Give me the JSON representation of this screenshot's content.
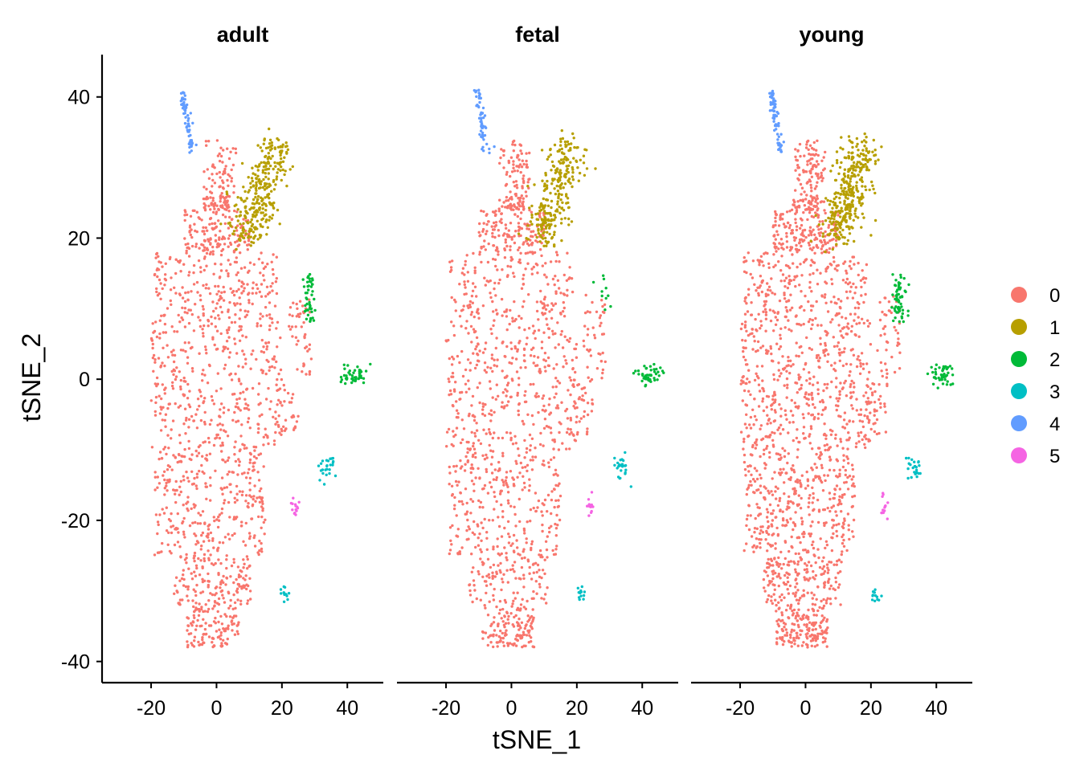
{
  "chart_data": {
    "type": "scatter",
    "xlabel": "tSNE_1",
    "ylabel": "tSNE_2",
    "xlim": [
      -35,
      51
    ],
    "ylim": [
      -43,
      46
    ],
    "x_ticks": [
      -20,
      0,
      20,
      40
    ],
    "y_ticks": [
      40,
      20,
      0,
      -20,
      -40
    ],
    "panels": [
      "adult",
      "fetal",
      "young"
    ],
    "legend": {
      "position": "right",
      "entries": [
        {
          "label": "0",
          "color": "#F8766D"
        },
        {
          "label": "1",
          "color": "#B79F00"
        },
        {
          "label": "2",
          "color": "#00BA38"
        },
        {
          "label": "3",
          "color": "#00BFC4"
        },
        {
          "label": "4",
          "color": "#619CFF"
        },
        {
          "label": "5",
          "color": "#F564E3"
        }
      ]
    },
    "clusters": [
      {
        "cluster": "0",
        "region": "main body",
        "x_range": [
          -28,
          30
        ],
        "y_range": [
          -38,
          34
        ]
      },
      {
        "cluster": "1",
        "center": [
          17,
          27
        ],
        "x_range": [
          5,
          22
        ],
        "y_range": [
          20,
          33
        ]
      },
      {
        "cluster": "2",
        "groups": [
          {
            "center": [
              28,
              9
            ]
          },
          {
            "center": [
              42,
              0
            ]
          }
        ]
      },
      {
        "cluster": "3",
        "groups": [
          {
            "center": [
              34,
              -12.5
            ]
          },
          {
            "center": [
              21,
              -30
            ]
          }
        ]
      },
      {
        "cluster": "4",
        "center": [
          -10,
          37
        ],
        "x_range": [
          -12,
          -7
        ],
        "y_range": [
          31,
          42
        ]
      },
      {
        "cluster": "5",
        "center": [
          24,
          -18
        ]
      }
    ]
  }
}
